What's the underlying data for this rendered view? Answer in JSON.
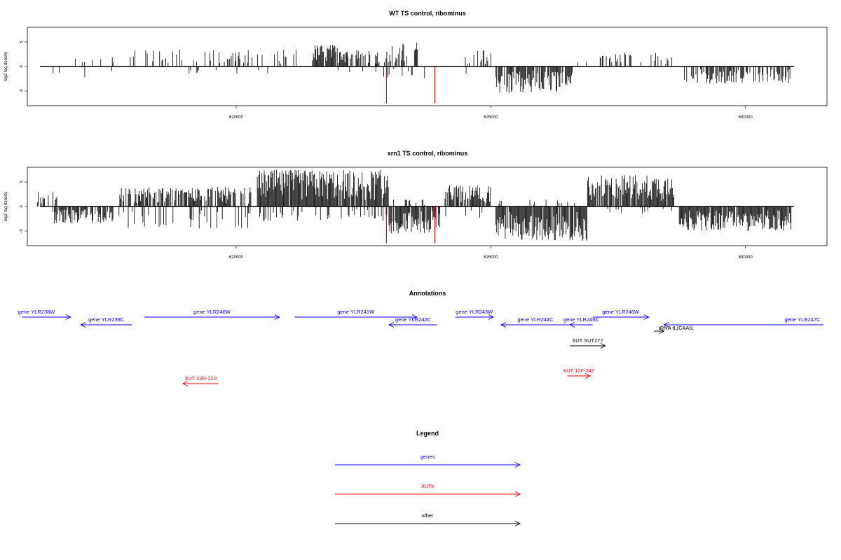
{
  "chart_data": [
    {
      "type": "bar",
      "title": "WT TS control, ribominus",
      "ylabel": "log2 tag density",
      "xlim": [
        615900,
        631600
      ],
      "ylim": [
        -8,
        8
      ],
      "xticks": [
        620000,
        625000,
        630000
      ],
      "yticks": [
        5,
        0,
        -5
      ],
      "grid": false,
      "highlight_color": "#cc0000",
      "segments": [
        {
          "range": [
            616100,
            617600
          ],
          "sign": 1,
          "density": 0.1,
          "max": 2.0
        },
        {
          "range": [
            616300,
            617700
          ],
          "sign": -1,
          "density": 0.07,
          "max": 3.0
        },
        {
          "range": [
            617800,
            621200
          ],
          "sign": 1,
          "density": 0.25,
          "max": 3.5
        },
        {
          "range": [
            619000,
            621200
          ],
          "sign": -1,
          "density": 0.05,
          "max": 1.5
        },
        {
          "range": [
            621500,
            622200
          ],
          "sign": 1,
          "density": 0.85,
          "max": 4.5
        },
        {
          "range": [
            622200,
            623000
          ],
          "sign": 1,
          "density": 0.35,
          "max": 3.5
        },
        {
          "range": [
            622000,
            622800
          ],
          "sign": -1,
          "density": 0.1,
          "max": 1.5
        },
        {
          "range": [
            623000,
            623600
          ],
          "sign": 1,
          "density": 0.45,
          "max": 5.0
        },
        {
          "range": [
            622700,
            624000
          ],
          "sign": -1,
          "density": 0.12,
          "max": 2.5
        },
        {
          "range": [
            624500,
            625000
          ],
          "sign": 1,
          "density": 0.4,
          "max": 3.5
        },
        {
          "range": [
            624000,
            624600
          ],
          "sign": -1,
          "density": 0.06,
          "max": 2.0
        },
        {
          "range": [
            625100,
            626600
          ],
          "sign": -1,
          "density": 0.85,
          "max": 5.5
        },
        {
          "range": [
            626600,
            627000
          ],
          "sign": 1,
          "density": 0.1,
          "max": 1.0
        },
        {
          "range": [
            627100,
            628600
          ],
          "sign": 1,
          "density": 0.3,
          "max": 2.8
        },
        {
          "range": [
            628800,
            630900
          ],
          "sign": -1,
          "density": 0.55,
          "max": 3.5
        }
      ],
      "highlights": [
        {
          "x": 622950,
          "y": -7.5
        },
        {
          "x": 623900,
          "y": -7.5
        }
      ]
    },
    {
      "type": "bar",
      "title": "xrn1 TS control, ribominus",
      "ylabel": "log2 tag density",
      "xlim": [
        615900,
        631600
      ],
      "ylim": [
        -8,
        8
      ],
      "xticks": [
        620000,
        625000,
        630000
      ],
      "yticks": [
        5,
        0,
        -5
      ],
      "grid": false,
      "highlight_color": "#cc0000",
      "segments": [
        {
          "range": [
            616100,
            616500
          ],
          "sign": 1,
          "density": 0.5,
          "max": 3.0
        },
        {
          "range": [
            616400,
            617600
          ],
          "sign": -1,
          "density": 0.75,
          "max": 3.5
        },
        {
          "range": [
            617700,
            620300
          ],
          "sign": 1,
          "density": 0.65,
          "max": 4.0
        },
        {
          "range": [
            617700,
            620300
          ],
          "sign": -1,
          "density": 0.15,
          "max": 4.5
        },
        {
          "range": [
            620400,
            623000
          ],
          "sign": 1,
          "density": 0.95,
          "max": 7.5
        },
        {
          "range": [
            620400,
            623000
          ],
          "sign": -1,
          "density": 0.2,
          "max": 3.0
        },
        {
          "range": [
            623000,
            624000
          ],
          "sign": -1,
          "density": 0.9,
          "max": 5.5
        },
        {
          "range": [
            623000,
            624000
          ],
          "sign": 1,
          "density": 0.1,
          "max": 1.5
        },
        {
          "range": [
            624100,
            625000
          ],
          "sign": 1,
          "density": 0.85,
          "max": 4.5
        },
        {
          "range": [
            624100,
            625000
          ],
          "sign": -1,
          "density": 0.15,
          "max": 2.5
        },
        {
          "range": [
            625100,
            626900
          ],
          "sign": -1,
          "density": 0.95,
          "max": 7.0
        },
        {
          "range": [
            625100,
            626900
          ],
          "sign": 1,
          "density": 0.1,
          "max": 1.5
        },
        {
          "range": [
            626900,
            628600
          ],
          "sign": 1,
          "density": 0.9,
          "max": 6.5
        },
        {
          "range": [
            626900,
            628600
          ],
          "sign": -1,
          "density": 0.1,
          "max": 1.5
        },
        {
          "range": [
            628700,
            630900
          ],
          "sign": -1,
          "density": 0.95,
          "max": 5.0
        }
      ],
      "highlights": [
        {
          "x": 622950,
          "y": -7.5
        },
        {
          "x": 623900,
          "y": -7.5
        }
      ]
    }
  ],
  "annotations": {
    "title": "Annotations",
    "xlim": [
      615900,
      631600
    ],
    "colors": {
      "gene": "#0000ff",
      "xut": "#ff0000",
      "other": "#000000"
    },
    "features": [
      {
        "label": "gene YLR238W",
        "type": "gene",
        "start": 615800,
        "end": 616750,
        "strand": "+",
        "row": 0
      },
      {
        "label": "gene YLR239C",
        "type": "gene",
        "start": 616950,
        "end": 617950,
        "strand": "-",
        "row": 1
      },
      {
        "label": "gene YLR240W",
        "type": "gene",
        "start": 618200,
        "end": 620850,
        "strand": "+",
        "row": 0
      },
      {
        "label": "gene YLR241W",
        "type": "gene",
        "start": 621150,
        "end": 623550,
        "strand": "+",
        "row": 0
      },
      {
        "label": "gene YLR242C",
        "type": "gene",
        "start": 623000,
        "end": 623950,
        "strand": "-",
        "row": 1
      },
      {
        "label": "gene YLR243W",
        "type": "gene",
        "start": 624300,
        "end": 625050,
        "strand": "+",
        "row": 0
      },
      {
        "label": "gene YLR244C",
        "type": "gene",
        "start": 625200,
        "end": 626550,
        "strand": "-",
        "row": 1
      },
      {
        "label": "gene YLR245C",
        "type": "gene",
        "start": 626550,
        "end": 627000,
        "strand": "-",
        "row": 1
      },
      {
        "label": "gene YLR246W",
        "type": "gene",
        "start": 627000,
        "end": 628100,
        "strand": "+",
        "row": 0
      },
      {
        "label": "gene YLR247C",
        "type": "gene",
        "start": 628400,
        "end": 631600,
        "strand": "-",
        "row": 1
      },
      {
        "label": "tRNA tL(CAA)L",
        "type": "other",
        "start": 628200,
        "end": 628400,
        "strand": "+",
        "row": 2
      },
      {
        "label": "SUT SUT277",
        "type": "other",
        "start": 626550,
        "end": 627250,
        "strand": "+",
        "row": 3
      },
      {
        "label": "XUT 12F-247",
        "type": "xut",
        "start": 626500,
        "end": 626950,
        "strand": "+",
        "row": 4
      },
      {
        "label": "XUT 12R-220",
        "type": "xut",
        "start": 618950,
        "end": 619650,
        "strand": "-",
        "row": 5
      }
    ]
  },
  "legend": {
    "title": "Legend",
    "items": [
      {
        "label": "genes",
        "color": "#0000ff"
      },
      {
        "label": "XUTs",
        "color": "#ff0000"
      },
      {
        "label": "other",
        "color": "#000000"
      }
    ]
  }
}
